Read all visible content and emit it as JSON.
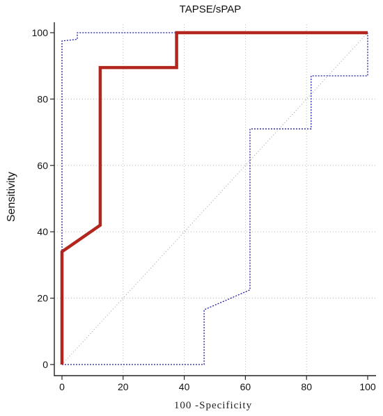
{
  "chart_data": {
    "type": "line",
    "title": "TAPSE/sPAP",
    "xlabel": "100 -Specificity",
    "ylabel": "Sensitivity",
    "xlim": [
      0,
      100
    ],
    "ylim": [
      0,
      100
    ],
    "x_ticks": [
      "0",
      "20",
      "40",
      "60",
      "80",
      "100"
    ],
    "y_ticks": [
      "0",
      "20",
      "40",
      "60",
      "80",
      "100"
    ],
    "grid": true,
    "series": [
      {
        "role": "roc-curve",
        "color": "#b2261d",
        "style": "solid",
        "x": [
          0,
          0,
          12.5,
          12.5,
          37.5,
          37.5,
          100
        ],
        "y": [
          0,
          34,
          42,
          89.5,
          89.5,
          100,
          100
        ]
      },
      {
        "role": "upper-confidence-bound",
        "color": "#1a1aa0",
        "style": "dotted",
        "x": [
          0,
          0,
          5,
          5,
          37.5,
          37.5,
          100
        ],
        "y": [
          0,
          97.5,
          98,
          100,
          100,
          100,
          100
        ]
      },
      {
        "role": "lower-confidence-bound",
        "color": "#1a1aa0",
        "style": "dotted",
        "x": [
          0,
          46.5,
          46.5,
          61.5,
          61.5,
          81.5,
          81.5,
          100,
          100
        ],
        "y": [
          0,
          0,
          16.5,
          22.5,
          71,
          71,
          87,
          87,
          100
        ]
      },
      {
        "role": "reference-diagonal",
        "color": "#9a9a9a",
        "style": "dotted",
        "x": [
          0,
          100
        ],
        "y": [
          0,
          100
        ]
      }
    ]
  }
}
